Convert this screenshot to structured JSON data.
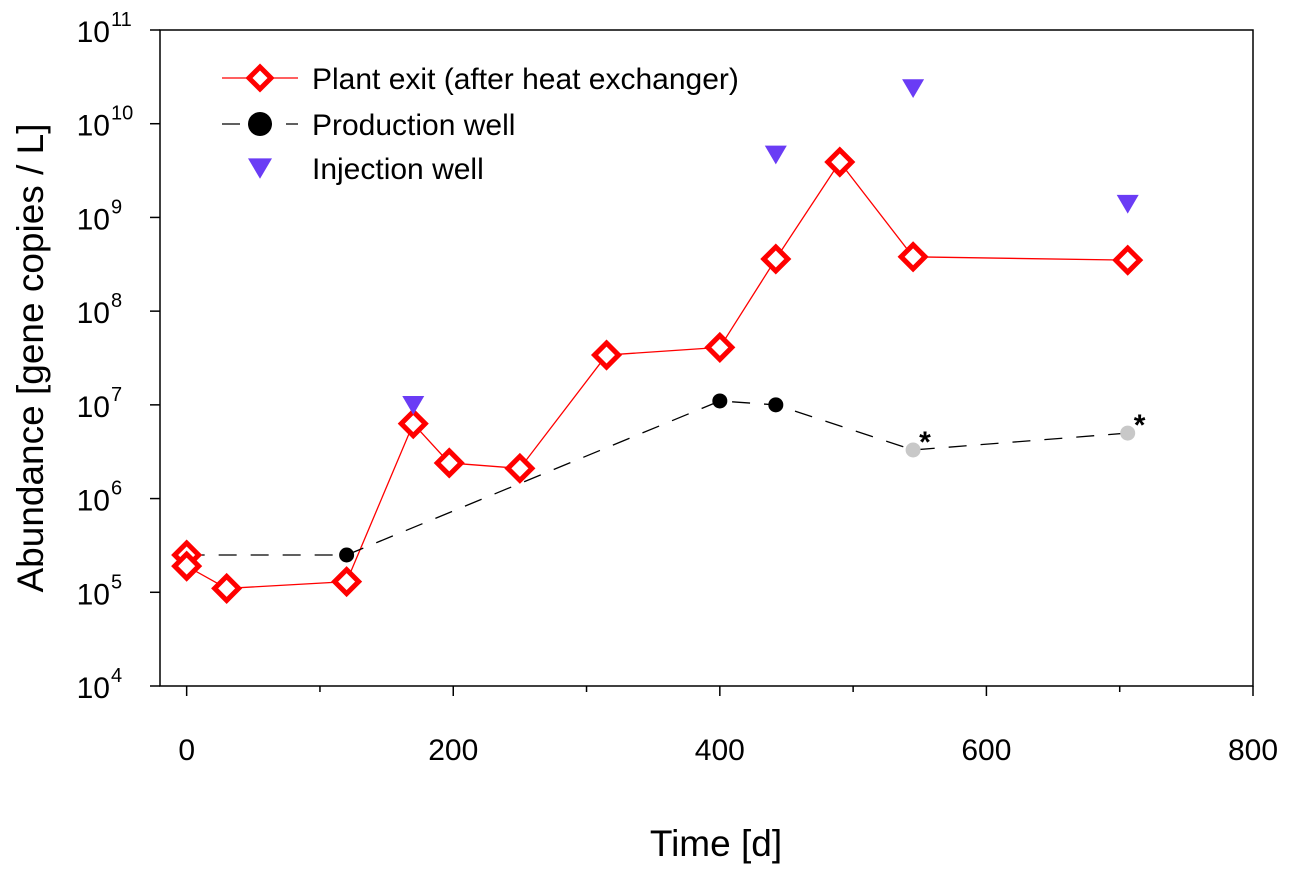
{
  "chart_data": {
    "type": "scatter",
    "title": "",
    "xlabel": "Time [d]",
    "ylabel": "Abundance [gene copies / L]",
    "xlim": [
      -20,
      800
    ],
    "ylim": [
      10000,
      100000000000
    ],
    "yscale": "log",
    "grid": false,
    "legend_position": "top-left",
    "x_ticks": [
      0,
      200,
      400,
      600,
      800
    ],
    "x_tick_labels": [
      "0",
      "200",
      "400",
      "600",
      "800"
    ],
    "y_ticks": [
      4,
      5,
      6,
      7,
      8,
      9,
      10,
      11
    ],
    "y_tick_labels": [
      {
        "base": "10",
        "exp": "4"
      },
      {
        "base": "10",
        "exp": "5"
      },
      {
        "base": "10",
        "exp": "6"
      },
      {
        "base": "10",
        "exp": "7"
      },
      {
        "base": "10",
        "exp": "8"
      },
      {
        "base": "10",
        "exp": "9"
      },
      {
        "base": "10",
        "exp": "10"
      },
      {
        "base": "10",
        "exp": "11"
      }
    ],
    "series": [
      {
        "name": "Plant exit (after heat exchanger)",
        "marker": "open-diamond",
        "line": "solid",
        "color": "#ff0000",
        "x": [
          0,
          0,
          30,
          120,
          170,
          197,
          250,
          315,
          400,
          442,
          490,
          545,
          706
        ],
        "y": [
          250000,
          190000,
          110000,
          130000,
          6300000,
          2400000,
          2100000,
          34000000,
          41000000,
          360000000,
          3900000000,
          380000000,
          350000000
        ]
      },
      {
        "name": "Production well",
        "marker": "filled-circle",
        "line": "dashed",
        "color": "#000000",
        "point_colors": [
          "#000000",
          "#000000",
          "#000000",
          "#000000",
          "#c8c8c8",
          "#c8c8c8"
        ],
        "x": [
          0,
          120,
          400,
          442,
          545,
          706
        ],
        "y": [
          250000,
          250000,
          11000000,
          10000000,
          3300000,
          5000000
        ]
      },
      {
        "name": "Injection well",
        "marker": "filled-triangle-down",
        "line": "none",
        "color": "#6a3cf5",
        "x": [
          170,
          442,
          545,
          706
        ],
        "y": [
          10000000,
          4700000000,
          24000000000,
          1400000000
        ]
      }
    ],
    "annotations": [
      {
        "text": "*",
        "x": 545,
        "y": 3300000
      },
      {
        "text": "*",
        "x": 706,
        "y": 5000000
      }
    ]
  }
}
